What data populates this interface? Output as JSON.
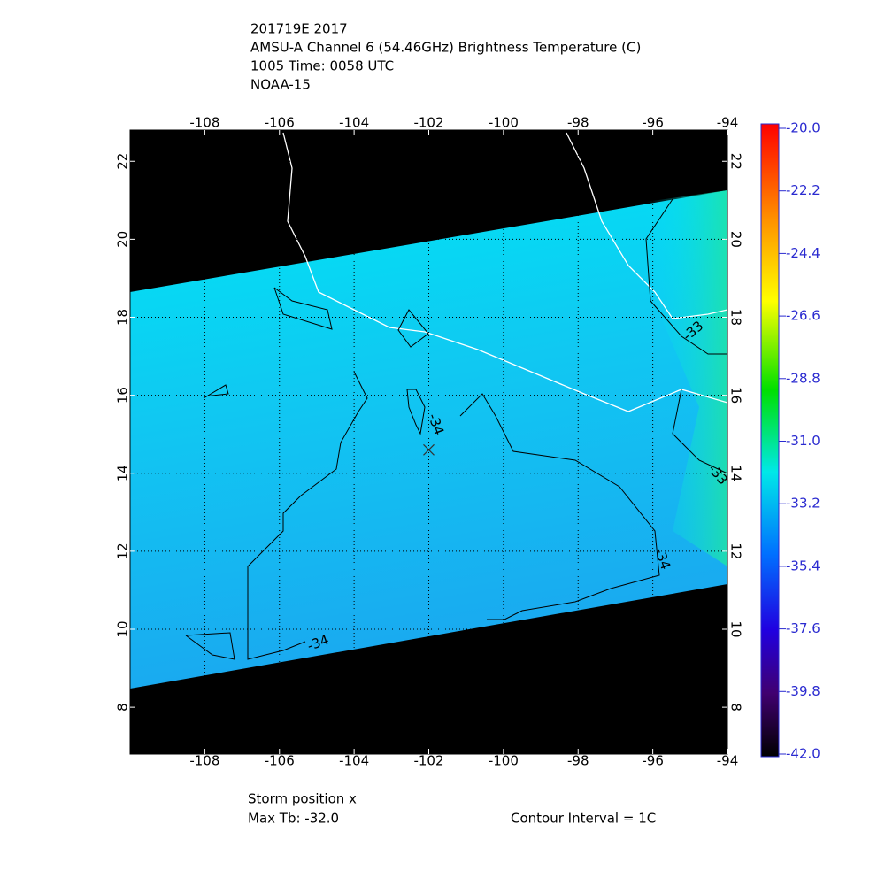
{
  "header": {
    "lines": [
      "201719E 2017",
      "AMSU-A Channel 6 (54.46GHz) Brightness Temperature (C)",
      "1005 Time: 0058 UTC",
      "NOAA-15"
    ]
  },
  "chart_data": {
    "type": "map",
    "xlim": [
      -110,
      -94
    ],
    "xticks": [
      -108,
      -106,
      -104,
      -102,
      -100,
      -98,
      -96,
      -94
    ],
    "ylim": [
      6.8,
      22.8
    ],
    "yticks": [
      8,
      10,
      12,
      14,
      16,
      18,
      20,
      22
    ],
    "grid": true,
    "colorbar": {
      "lim": [
        -42,
        -20
      ],
      "ticks": [
        {
          "value": -20,
          "label": "-20.0"
        },
        -22.2,
        -24.4,
        -26.6,
        -28.8,
        {
          "value": -31,
          "label": "-31.0"
        },
        -33.2,
        -35.4,
        -37.6,
        -39.8,
        {
          "value": -42,
          "label": "-42.0"
        }
      ]
    },
    "storm": {
      "lon": -102.0,
      "lat": 14.6
    }
  },
  "contour_labels": [
    "-34",
    "-34",
    "-34",
    "-33",
    "-33"
  ],
  "footer": {
    "storm_label": "Storm position x",
    "max_tb": "Max Tb: -32.0",
    "contour_interval": "Contour Interval = 1C"
  }
}
